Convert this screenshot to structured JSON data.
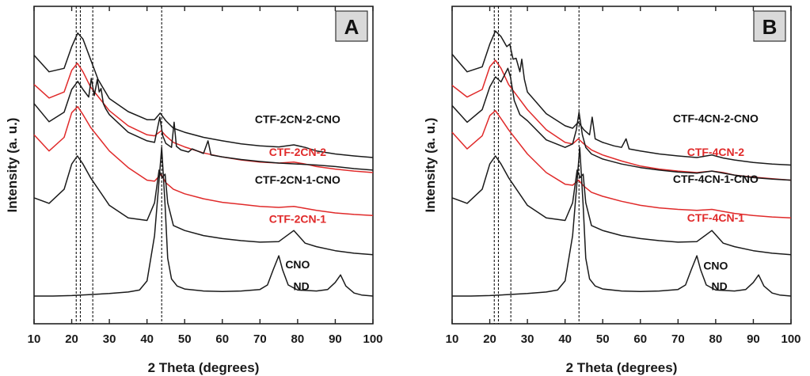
{
  "chart_data": [
    {
      "type": "line",
      "panel": "A",
      "xlabel": "2 Theta (degrees)",
      "ylabel": "Intensity (a. u.)",
      "xlim": [
        10,
        100
      ],
      "xticks": [
        10,
        20,
        30,
        40,
        50,
        60,
        70,
        80,
        90,
        100
      ],
      "reference_lines": [
        21.2,
        22.3,
        25.6,
        43.9
      ],
      "series": [
        {
          "name": "CTF-2CN-2-CNO",
          "color": "#1a1a1a",
          "x": [
            10,
            14,
            18,
            20,
            21.6,
            23,
            25,
            26,
            27,
            30,
            35,
            40,
            42,
            43.5,
            45,
            47,
            50,
            55,
            60,
            65,
            70,
            75,
            79,
            82,
            85,
            90,
            95,
            100
          ],
          "y": [
            4.78,
            4.45,
            4.52,
            4.95,
            5.22,
            5.1,
            4.7,
            4.5,
            4.3,
            3.92,
            3.66,
            3.5,
            3.5,
            3.63,
            3.48,
            3.33,
            3.25,
            3.15,
            3.08,
            3.02,
            2.98,
            2.96,
            3.0,
            2.95,
            2.88,
            2.82,
            2.78,
            2.75
          ]
        },
        {
          "name": "CTF-2CN-2",
          "color": "#e02a2a",
          "x": [
            10,
            14,
            18,
            20,
            21.5,
            23,
            25,
            30,
            35,
            40,
            42,
            43.8,
            45,
            47,
            50,
            55,
            60,
            65,
            70,
            75,
            79,
            82,
            85,
            90,
            95,
            100
          ],
          "y": [
            4.2,
            3.93,
            4.05,
            4.48,
            4.62,
            4.45,
            4.15,
            3.68,
            3.38,
            3.2,
            3.18,
            3.28,
            3.18,
            3.05,
            2.96,
            2.84,
            2.76,
            2.7,
            2.66,
            2.64,
            2.66,
            2.62,
            2.57,
            2.52,
            2.48,
            2.45
          ]
        },
        {
          "name": "CTF-2CN-1-CNO",
          "color": "#1a1a1a",
          "x": [
            10,
            14,
            18,
            20,
            21.6,
            23,
            24.5,
            25.2,
            26,
            26.8,
            27.3,
            27.8,
            28.4,
            29,
            30,
            35,
            40,
            42,
            43.4,
            44.2,
            45,
            46.5,
            47.2,
            47.8,
            49,
            51,
            52,
            55,
            56.2,
            57,
            60,
            65,
            70,
            75,
            80,
            85,
            90,
            95,
            100
          ],
          "y": [
            3.82,
            3.46,
            3.65,
            4.1,
            4.26,
            4.1,
            3.95,
            4.32,
            3.98,
            4.3,
            4.05,
            4.12,
            3.82,
            3.72,
            3.6,
            3.25,
            3.08,
            3.05,
            3.55,
            3.18,
            3.03,
            2.95,
            3.45,
            2.97,
            2.9,
            2.86,
            2.92,
            2.83,
            3.08,
            2.8,
            2.76,
            2.71,
            2.67,
            2.64,
            2.62,
            2.6,
            2.57,
            2.53,
            2.5
          ]
        },
        {
          "name": "CTF-2CN-1",
          "color": "#e02a2a",
          "x": [
            10,
            14,
            18,
            20,
            21.6,
            23,
            25,
            30,
            35,
            40,
            42,
            43.7,
            45,
            47,
            50,
            55,
            60,
            65,
            70,
            75,
            79,
            82,
            85,
            90,
            95,
            100
          ],
          "y": [
            3.2,
            2.88,
            3.15,
            3.64,
            3.76,
            3.6,
            3.35,
            2.88,
            2.55,
            2.3,
            2.28,
            2.42,
            2.25,
            2.12,
            2.03,
            1.93,
            1.86,
            1.82,
            1.78,
            1.76,
            1.78,
            1.74,
            1.7,
            1.65,
            1.62,
            1.6
          ]
        },
        {
          "name": "CNO",
          "color": "#1a1a1a",
          "x": [
            10,
            14,
            18,
            20,
            21.5,
            23,
            25,
            30,
            35,
            40,
            42,
            43.2,
            44,
            44.8,
            45.5,
            47,
            50,
            55,
            60,
            65,
            70,
            75,
            79,
            82,
            85,
            90,
            95,
            100
          ],
          "y": [
            1.95,
            1.84,
            2.12,
            2.62,
            2.78,
            2.62,
            2.35,
            1.8,
            1.55,
            1.5,
            1.85,
            2.5,
            2.35,
            2.42,
            1.85,
            1.4,
            1.3,
            1.2,
            1.14,
            1.1,
            1.07,
            1.08,
            1.3,
            1.05,
            0.98,
            0.9,
            0.85,
            0.82
          ]
        },
        {
          "name": "ND",
          "color": "#1a1a1a",
          "x": [
            10,
            15,
            20,
            25,
            30,
            35,
            38,
            40,
            42,
            43,
            43.9,
            44.8,
            45.5,
            46.5,
            48,
            50,
            55,
            60,
            65,
            70,
            72,
            73.5,
            75,
            76,
            77.5,
            80,
            85,
            88,
            90,
            91.4,
            92.8,
            95,
            97,
            100
          ],
          "y": [
            0.0,
            0.0,
            0.01,
            0.03,
            0.05,
            0.08,
            0.12,
            0.3,
            1.2,
            2.1,
            2.95,
            1.8,
            0.75,
            0.34,
            0.2,
            0.14,
            0.1,
            0.09,
            0.1,
            0.13,
            0.22,
            0.52,
            0.8,
            0.52,
            0.22,
            0.12,
            0.1,
            0.13,
            0.27,
            0.42,
            0.2,
            0.06,
            0.02,
            0.0
          ]
        }
      ]
    },
    {
      "type": "line",
      "panel": "B",
      "xlabel": "2 Theta (degrees)",
      "ylabel": "Intensity (a. u.)",
      "xlim": [
        10,
        100
      ],
      "xticks": [
        10,
        20,
        30,
        40,
        50,
        60,
        70,
        80,
        90,
        100
      ],
      "reference_lines": [
        21.2,
        22.3,
        25.6,
        43.7
      ],
      "series": [
        {
          "name": "CTF-4CN-2-CNO",
          "color": "#1a1a1a",
          "x": [
            10,
            14,
            18,
            20,
            21.5,
            23,
            24.5,
            25.3,
            26.2,
            27,
            28,
            28.5,
            29.2,
            30,
            35,
            40,
            42,
            43.5,
            45,
            46.5,
            47.2,
            48,
            50,
            53,
            55,
            56.2,
            57,
            60,
            65,
            70,
            75,
            79,
            82,
            85,
            90,
            95,
            100
          ],
          "y": [
            4.8,
            4.45,
            4.55,
            5.0,
            5.26,
            5.15,
            4.95,
            5.0,
            4.7,
            4.72,
            4.45,
            4.7,
            4.3,
            4.05,
            3.62,
            3.38,
            3.33,
            3.45,
            3.3,
            3.2,
            3.55,
            3.12,
            3.05,
            2.98,
            2.95,
            3.12,
            2.92,
            2.88,
            2.82,
            2.78,
            2.75,
            2.8,
            2.74,
            2.7,
            2.65,
            2.62,
            2.6
          ]
        },
        {
          "name": "CTF-4CN-2",
          "color": "#e02a2a",
          "x": [
            10,
            14,
            18,
            20,
            21.5,
            23,
            25,
            30,
            35,
            40,
            42,
            43.5,
            45,
            47,
            50,
            55,
            60,
            65,
            70,
            75,
            79,
            82,
            85,
            90,
            95,
            100
          ],
          "y": [
            4.18,
            3.95,
            4.1,
            4.55,
            4.68,
            4.52,
            4.2,
            3.7,
            3.3,
            3.05,
            3.02,
            3.12,
            3.02,
            2.9,
            2.8,
            2.68,
            2.58,
            2.52,
            2.48,
            2.45,
            2.48,
            2.45,
            2.4,
            2.36,
            2.33,
            2.3
          ]
        },
        {
          "name": "CTF-4CN-1-CNO",
          "color": "#1a1a1a",
          "x": [
            10,
            14,
            18,
            20,
            21.5,
            23,
            24.8,
            25.5,
            26.5,
            28,
            30,
            35,
            40,
            42,
            43,
            43.7,
            44.6,
            45.5,
            47,
            50,
            55,
            60,
            65,
            70,
            75,
            79,
            82,
            85,
            90,
            95,
            100
          ],
          "y": [
            3.78,
            3.45,
            3.7,
            4.15,
            4.35,
            4.25,
            4.52,
            4.35,
            3.88,
            3.6,
            3.48,
            3.1,
            2.95,
            3.02,
            3.3,
            3.65,
            3.2,
            2.95,
            2.82,
            2.72,
            2.62,
            2.55,
            2.5,
            2.46,
            2.44,
            2.48,
            2.44,
            2.4,
            2.35,
            2.32,
            2.3
          ]
        },
        {
          "name": "CTF-4CN-1",
          "color": "#e02a2a",
          "x": [
            10,
            14,
            18,
            20,
            21.5,
            23,
            25,
            30,
            35,
            40,
            42,
            43.6,
            45,
            47,
            50,
            55,
            60,
            65,
            70,
            75,
            79,
            82,
            85,
            90,
            95,
            100
          ],
          "y": [
            3.25,
            2.92,
            3.18,
            3.58,
            3.68,
            3.52,
            3.3,
            2.82,
            2.45,
            2.22,
            2.2,
            2.3,
            2.18,
            2.06,
            1.98,
            1.88,
            1.8,
            1.75,
            1.72,
            1.7,
            1.72,
            1.68,
            1.64,
            1.6,
            1.57,
            1.55
          ]
        },
        {
          "name": "CNO",
          "color": "#1a1a1a",
          "x": [
            10,
            14,
            18,
            20,
            21.5,
            23,
            25,
            30,
            35,
            40,
            42,
            43.2,
            44,
            44.8,
            45.5,
            47,
            50,
            55,
            60,
            65,
            70,
            75,
            79,
            82,
            85,
            90,
            95,
            100
          ],
          "y": [
            1.95,
            1.84,
            2.12,
            2.62,
            2.78,
            2.62,
            2.35,
            1.8,
            1.55,
            1.5,
            1.85,
            2.5,
            2.35,
            2.42,
            1.85,
            1.4,
            1.3,
            1.2,
            1.14,
            1.1,
            1.07,
            1.08,
            1.3,
            1.05,
            0.98,
            0.9,
            0.85,
            0.82
          ]
        },
        {
          "name": "ND",
          "color": "#1a1a1a",
          "x": [
            10,
            15,
            20,
            25,
            30,
            35,
            38,
            40,
            42,
            43,
            43.9,
            44.8,
            45.5,
            46.5,
            48,
            50,
            55,
            60,
            65,
            70,
            72,
            73.5,
            75,
            76,
            77.5,
            80,
            85,
            88,
            90,
            91.4,
            92.8,
            95,
            97,
            100
          ],
          "y": [
            0.0,
            0.0,
            0.01,
            0.03,
            0.05,
            0.08,
            0.12,
            0.3,
            1.2,
            2.1,
            2.95,
            1.8,
            0.75,
            0.34,
            0.2,
            0.14,
            0.1,
            0.09,
            0.1,
            0.13,
            0.22,
            0.52,
            0.8,
            0.52,
            0.22,
            0.12,
            0.1,
            0.13,
            0.27,
            0.42,
            0.2,
            0.06,
            0.02,
            0.0
          ]
        }
      ]
    }
  ]
}
